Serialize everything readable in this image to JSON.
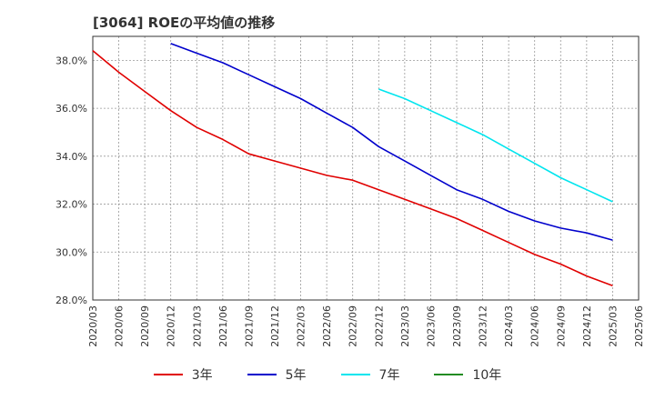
{
  "chart_data": {
    "type": "line",
    "title": "[3064]  ROEの平均値の推移",
    "xlabel": "",
    "ylabel": "",
    "ylim": [
      28.0,
      39.0
    ],
    "yticks": [
      28,
      30,
      32,
      34,
      36,
      38
    ],
    "ytick_labels": [
      "28.0%",
      "30.0%",
      "32.0%",
      "34.0%",
      "36.0%",
      "38.0%"
    ],
    "categories": [
      "2020/03",
      "2020/06",
      "2020/09",
      "2020/12",
      "2021/03",
      "2021/06",
      "2021/09",
      "2021/12",
      "2022/03",
      "2022/06",
      "2022/09",
      "2022/12",
      "2023/03",
      "2023/06",
      "2023/09",
      "2023/12",
      "2024/03",
      "2024/06",
      "2024/09",
      "2024/12",
      "2025/03",
      "2025/06"
    ],
    "grid": true,
    "legend_position": "bottom",
    "series": [
      {
        "name": "3年",
        "color": "#e00000",
        "values": [
          38.4,
          37.5,
          36.7,
          35.9,
          35.2,
          34.7,
          34.1,
          33.8,
          33.5,
          33.2,
          33.0,
          32.6,
          32.2,
          31.8,
          31.4,
          30.9,
          30.4,
          29.9,
          29.5,
          29.0,
          28.6,
          null
        ]
      },
      {
        "name": "5年",
        "color": "#0000cc",
        "values": [
          null,
          null,
          null,
          38.7,
          38.3,
          37.9,
          37.4,
          36.9,
          36.4,
          35.8,
          35.2,
          34.4,
          33.8,
          33.2,
          32.6,
          32.2,
          31.7,
          31.3,
          31.0,
          30.8,
          30.5,
          null
        ]
      },
      {
        "name": "7年",
        "color": "#00e5ee",
        "values": [
          null,
          null,
          null,
          null,
          null,
          null,
          null,
          null,
          null,
          null,
          null,
          36.8,
          36.4,
          35.9,
          35.4,
          34.9,
          34.3,
          33.7,
          33.1,
          32.6,
          32.1,
          null
        ]
      },
      {
        "name": "10年",
        "color": "#228b22",
        "values": [
          null,
          null,
          null,
          null,
          null,
          null,
          null,
          null,
          null,
          null,
          null,
          null,
          null,
          null,
          null,
          null,
          null,
          null,
          null,
          null,
          null,
          null
        ]
      }
    ]
  }
}
